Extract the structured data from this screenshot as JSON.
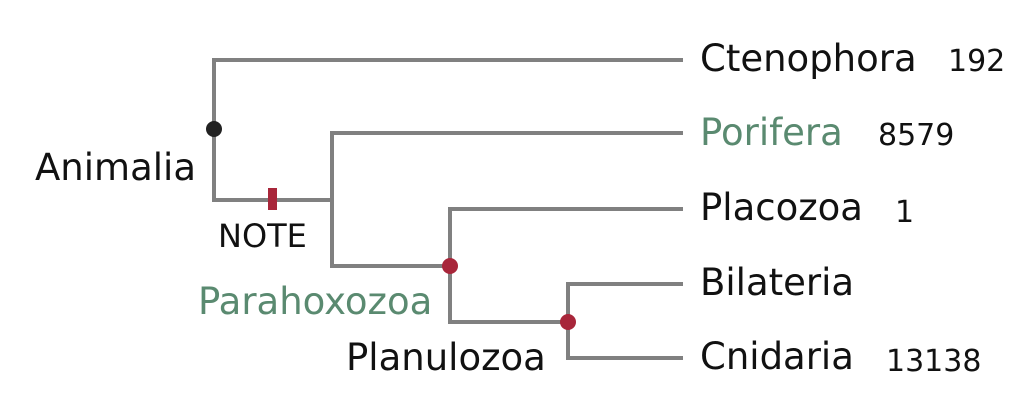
{
  "colors": {
    "branch": "#808080",
    "text": "#111111",
    "highlight_text": "#5a8a70",
    "root_node": "#222222",
    "node": "#a8263a"
  },
  "tree": {
    "root_label": "Animalia",
    "marker_label": "NOTE",
    "internal_labels": {
      "parahoxozoa": "Parahoxozoa",
      "planulozoa": "Planulozoa"
    },
    "leaves": [
      {
        "name": "Ctenophora",
        "count": "192"
      },
      {
        "name": "Porifera",
        "count": "8579"
      },
      {
        "name": "Placozoa",
        "count": "1"
      },
      {
        "name": "Bilateria",
        "count": ""
      },
      {
        "name": "Cnidaria",
        "count": "13138"
      }
    ]
  }
}
